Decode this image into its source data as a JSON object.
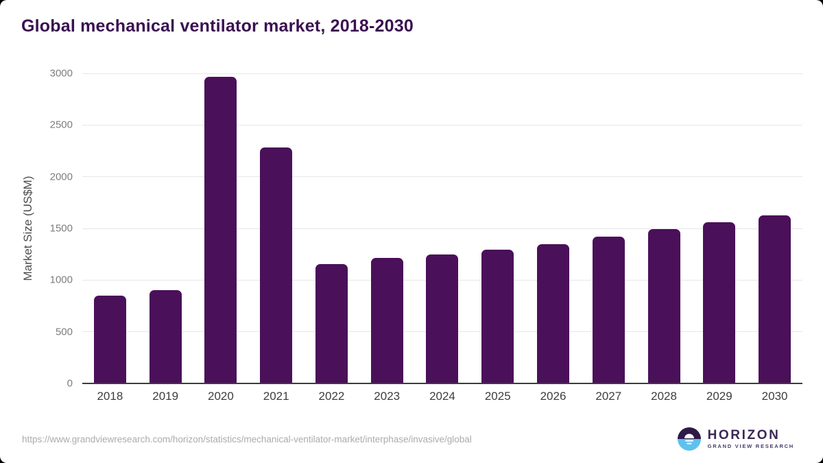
{
  "chart_data": {
    "type": "bar",
    "title": "Global mechanical ventilator market, 2018-2030",
    "categories": [
      "2018",
      "2019",
      "2020",
      "2021",
      "2022",
      "2023",
      "2024",
      "2025",
      "2026",
      "2027",
      "2028",
      "2029",
      "2030"
    ],
    "values": [
      850,
      900,
      2970,
      2285,
      1155,
      1215,
      1250,
      1295,
      1345,
      1420,
      1495,
      1560,
      1625
    ],
    "xlabel": "",
    "ylabel": "Market Size (US$M)",
    "ylim": [
      0,
      3000
    ],
    "yticks": [
      0,
      500,
      1000,
      1500,
      2000,
      2500,
      3000
    ],
    "grid": true,
    "legend_position": "none",
    "bar_color": "#4a1059"
  },
  "colors": {
    "title": "#3a1150",
    "bar": "#4a1059",
    "ytick_label": "#7d7d7d",
    "xtick_label": "#3d3d3d",
    "gridline": "#e7e7e7",
    "axis": "#3c3c3c",
    "url_text": "#ababab",
    "logo_dark_half": "#2e1a47",
    "logo_blue_half": "#5ec1ef",
    "logo_text": "#3b2757"
  },
  "footer": {
    "source_url": "https://www.grandviewresearch.com/horizon/statistics/mechanical-ventilator-market/interphase/invasive/global",
    "logo": {
      "name": "HORIZON",
      "subtitle": "GRAND VIEW RESEARCH",
      "icon": "horizon-sun-circle-icon"
    }
  }
}
